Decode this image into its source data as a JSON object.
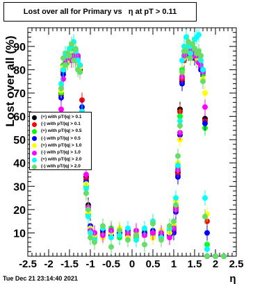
{
  "title": "Lost over all for Primary vs   η at pT > 0.11",
  "timestamp": "Tue Dec 21 23:14:40 2021",
  "chart_data": {
    "type": "scatter",
    "xlabel": "η",
    "ylabel": "Lost over all (%)",
    "xlim": [
      -2.5,
      2.5
    ],
    "ylim": [
      0,
      98
    ],
    "xticks": [
      "-2.5",
      "-2",
      "-1.5",
      "-1",
      "-0.5",
      "0",
      "0.5",
      "1",
      "1.5",
      "2",
      "2.5"
    ],
    "yticks": [
      "10",
      "20",
      "30",
      "40",
      "50",
      "60",
      "70",
      "80",
      "90"
    ],
    "legend_position": "left-middle",
    "series": [
      {
        "name": "(+) with pT/|q| > 0.1",
        "color": "#000000",
        "x": [
          -1.7,
          -1.65,
          -1.6,
          -1.55,
          -1.5,
          -1.45,
          -1.4,
          -1.35,
          -1.3,
          -1.25,
          -1.2,
          -1.15,
          -1.1,
          -1.05,
          -1.0,
          -0.9,
          -0.7,
          -0.5,
          -0.3,
          -0.1,
          0.1,
          0.3,
          0.5,
          0.7,
          0.9,
          1.0,
          1.05,
          1.1,
          1.15,
          1.2,
          1.25,
          1.3,
          1.35,
          1.4,
          1.45,
          1.5,
          1.55,
          1.6,
          1.65,
          1.7,
          1.75,
          1.8,
          2.0,
          2.2
        ],
        "y": [
          70,
          80,
          83,
          84,
          85,
          85,
          87,
          86,
          86,
          80,
          62,
          48,
          34,
          22,
          12,
          9,
          10,
          11,
          10,
          9,
          9,
          10,
          10,
          9,
          10,
          12,
          20,
          36,
          63,
          75,
          85,
          88,
          87,
          88,
          87,
          86,
          85,
          84,
          82,
          80,
          59,
          0,
          0,
          0
        ]
      },
      {
        "name": "(-) with pT/|q| > 0.1",
        "color": "#ff0000",
        "x": [
          -1.7,
          -1.65,
          -1.6,
          -1.55,
          -1.5,
          -1.45,
          -1.4,
          -1.35,
          -1.3,
          -1.25,
          -1.2,
          -1.15,
          -1.1,
          -1.05,
          -1.0,
          -0.9,
          -0.7,
          -0.5,
          -0.3,
          -0.1,
          0.1,
          0.3,
          0.5,
          0.7,
          0.9,
          1.0,
          1.05,
          1.1,
          1.15,
          1.2,
          1.25,
          1.3,
          1.35,
          1.4,
          1.45,
          1.5,
          1.55,
          1.6,
          1.65,
          1.7,
          1.75,
          1.8,
          2.0,
          2.2
        ],
        "y": [
          69,
          79,
          82,
          84,
          85,
          86,
          86,
          87,
          84,
          82,
          67,
          45,
          33,
          21,
          12,
          9,
          10,
          10,
          11,
          9,
          10,
          9,
          10,
          10,
          9,
          11,
          21,
          35,
          62,
          76,
          84,
          87,
          88,
          86,
          87,
          87,
          84,
          83,
          81,
          78,
          58,
          15,
          0,
          0
        ]
      },
      {
        "name": "(+) with pT/|q| > 0.5",
        "color": "#00ff00",
        "x": [
          -1.7,
          -1.65,
          -1.6,
          -1.55,
          -1.5,
          -1.45,
          -1.4,
          -1.35,
          -1.3,
          -1.25,
          -1.2,
          -1.15,
          -1.1,
          -1.05,
          -1.0,
          -0.9,
          -0.7,
          -0.5,
          -0.3,
          -0.1,
          0.1,
          0.3,
          0.5,
          0.7,
          0.9,
          1.0,
          1.05,
          1.1,
          1.15,
          1.2,
          1.25,
          1.3,
          1.35,
          1.4,
          1.45,
          1.5,
          1.55,
          1.6,
          1.65,
          1.7,
          1.75,
          1.8,
          2.0,
          2.2
        ],
        "y": [
          70,
          82,
          85,
          83,
          86,
          88,
          86,
          84,
          86,
          79,
          60,
          44,
          30,
          18,
          11,
          8,
          9,
          12,
          8,
          10,
          8,
          11,
          9,
          8,
          11,
          13,
          22,
          38,
          60,
          80,
          88,
          86,
          89,
          89,
          86,
          88,
          84,
          83,
          80,
          78,
          55,
          5,
          0,
          0
        ]
      },
      {
        "name": "(-) with pT/|q| > 0.5",
        "color": "#0000ff",
        "x": [
          -1.7,
          -1.65,
          -1.6,
          -1.55,
          -1.5,
          -1.45,
          -1.4,
          -1.35,
          -1.3,
          -1.25,
          -1.2,
          -1.15,
          -1.1,
          -1.05,
          -1.0,
          -0.9,
          -0.7,
          -0.5,
          -0.3,
          -0.1,
          0.1,
          0.3,
          0.5,
          0.7,
          0.9,
          1.0,
          1.05,
          1.1,
          1.15,
          1.2,
          1.25,
          1.3,
          1.35,
          1.4,
          1.45,
          1.5,
          1.55,
          1.6,
          1.65,
          1.7,
          1.75,
          1.8,
          2.0,
          2.2
        ],
        "y": [
          68,
          78,
          84,
          85,
          84,
          85,
          87,
          86,
          85,
          81,
          64,
          46,
          32,
          20,
          13,
          10,
          11,
          9,
          10,
          11,
          9,
          10,
          11,
          9,
          9,
          10,
          19,
          34,
          52,
          74,
          86,
          88,
          87,
          87,
          88,
          85,
          86,
          85,
          80,
          79,
          57,
          10,
          0,
          0
        ]
      },
      {
        "name": "(+) with pT/|q| > 1.0",
        "color": "#ffff00",
        "x": [
          -1.7,
          -1.65,
          -1.6,
          -1.55,
          -1.5,
          -1.45,
          -1.4,
          -1.35,
          -1.3,
          -1.25,
          -1.2,
          -1.15,
          -1.1,
          -1.05,
          -1.0,
          -0.9,
          -0.7,
          -0.5,
          -0.3,
          -0.1,
          0.1,
          0.3,
          0.5,
          0.7,
          0.9,
          1.0,
          1.05,
          1.1,
          1.15,
          1.2,
          1.25,
          1.3,
          1.35,
          1.4,
          1.45,
          1.5,
          1.55,
          1.6,
          1.65,
          1.7,
          1.75,
          1.8,
          2.0,
          2.2
        ],
        "y": [
          71,
          81,
          84,
          86,
          84,
          87,
          85,
          87,
          83,
          81,
          58,
          42,
          31,
          19,
          12,
          9,
          8,
          10,
          12,
          8,
          10,
          9,
          8,
          11,
          10,
          14,
          24,
          40,
          50,
          78,
          85,
          89,
          88,
          87,
          86,
          88,
          85,
          84,
          82,
          76,
          70,
          18,
          0,
          0
        ]
      },
      {
        "name": "(-) with pT/|q| > 1.0",
        "color": "#ff00ff",
        "x": [
          -1.7,
          -1.65,
          -1.6,
          -1.55,
          -1.5,
          -1.45,
          -1.4,
          -1.35,
          -1.3,
          -1.25,
          -1.2,
          -1.15,
          -1.1,
          -1.05,
          -1.0,
          -0.9,
          -0.7,
          -0.5,
          -0.3,
          -0.1,
          0.1,
          0.3,
          0.5,
          0.7,
          0.9,
          1.0,
          1.05,
          1.1,
          1.15,
          1.2,
          1.25,
          1.3,
          1.35,
          1.4,
          1.45,
          1.5,
          1.55,
          1.6,
          1.65,
          1.7,
          1.75,
          1.8,
          2.0,
          2.2
        ],
        "y": [
          63,
          76,
          83,
          85,
          86,
          84,
          86,
          85,
          86,
          82,
          61,
          47,
          35,
          21,
          11,
          10,
          9,
          11,
          9,
          10,
          11,
          9,
          10,
          10,
          8,
          12,
          20,
          37,
          53,
          77,
          86,
          87,
          88,
          88,
          87,
          86,
          86,
          83,
          82,
          79,
          64,
          0,
          0,
          0
        ]
      },
      {
        "name": "(+) with pT/|q| > 2.0",
        "color": "#00ffff",
        "x": [
          -1.7,
          -1.65,
          -1.6,
          -1.55,
          -1.5,
          -1.45,
          -1.4,
          -1.35,
          -1.3,
          -1.25,
          -1.2,
          -1.15,
          -1.1,
          -1.05,
          -1.0,
          -0.9,
          -0.7,
          -0.5,
          -0.3,
          -0.1,
          0.1,
          0.3,
          0.5,
          0.7,
          0.9,
          1.0,
          1.05,
          1.1,
          1.15,
          1.2,
          1.25,
          1.3,
          1.35,
          1.4,
          1.45,
          1.5,
          1.55,
          1.6,
          1.65,
          1.7,
          1.75,
          1.8,
          2.0,
          2.2
        ],
        "y": [
          74,
          80,
          87,
          86,
          89,
          90,
          92,
          88,
          84,
          82,
          62,
          43,
          29,
          17,
          10,
          7,
          12,
          8,
          9,
          12,
          7,
          12,
          15,
          8,
          12,
          15,
          25,
          39,
          58,
          84,
          90,
          94,
          90,
          87,
          90,
          93,
          94,
          95,
          84,
          80,
          25,
          3,
          0,
          0
        ]
      },
      {
        "name": "(-) with pT/|q| > 2.0",
        "color": "#66dd66",
        "x": [
          -1.7,
          -1.65,
          -1.6,
          -1.55,
          -1.5,
          -1.45,
          -1.4,
          -1.35,
          -1.3,
          -1.25,
          -1.2,
          -1.15,
          -1.1,
          -1.05,
          -1.0,
          -0.9,
          -0.7,
          -0.5,
          -0.3,
          -0.1,
          0.1,
          0.3,
          0.5,
          0.7,
          0.9,
          1.0,
          1.05,
          1.1,
          1.15,
          1.2,
          1.25,
          1.3,
          1.35,
          1.4,
          1.45,
          1.5,
          1.55,
          1.6,
          1.65,
          1.7,
          1.75,
          1.8,
          2.0,
          2.2
        ],
        "y": [
          72,
          85,
          82,
          87,
          86,
          91,
          84,
          89,
          80,
          79,
          60,
          40,
          27,
          20,
          8,
          6,
          13,
          4,
          11,
          7,
          9,
          5,
          14,
          7,
          13,
          15,
          22,
          43,
          56,
          79,
          88,
          88,
          92,
          85,
          91,
          89,
          87,
          88,
          86,
          75,
          17,
          0,
          0,
          0
        ]
      }
    ]
  }
}
